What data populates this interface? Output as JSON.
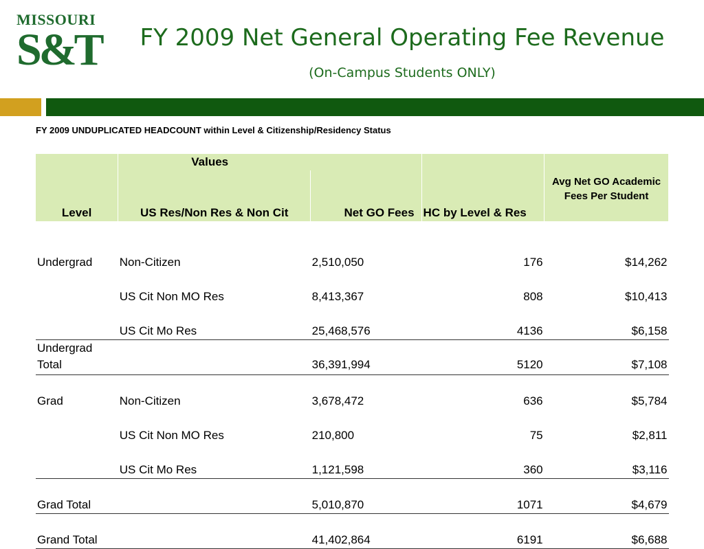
{
  "logo": {
    "top_text": "MISSOURI",
    "main_text": "S&T"
  },
  "title": {
    "main": "FY 2009 Net General Operating Fee Revenue",
    "sub": "(On-Campus Students ONLY)"
  },
  "colors": {
    "brand_green": "#10590f",
    "title_green": "#1d6b1d",
    "gold": "#d2a01f",
    "header_fill": "#d9ebb5"
  },
  "caption": "FY 2009 UNDUPLICATED HEADCOUNT within Level & Citizenship/Residency Status",
  "table": {
    "values_label": "Values",
    "headers": [
      "Level",
      "US Res/Non Res & Non Cit",
      "Net GO Fees",
      "HC by Level & Res",
      "Avg Net GO Academic Fees Per Student"
    ],
    "rows": [
      {
        "level": "Undergrad",
        "res": "Non-Citizen",
        "fees": "2,510,050",
        "hc": "176",
        "avg": "$14,262"
      },
      {
        "level": "",
        "res": "US Cit Non MO Res",
        "fees": "8,413,367",
        "hc": "808",
        "avg": "$10,413"
      },
      {
        "level": "",
        "res": "US Cit Mo Res",
        "fees": "25,468,576",
        "hc": "4136",
        "avg": "$6,158"
      },
      {
        "level": "Undergrad Total",
        "res": "",
        "fees": "36,391,994",
        "hc": "5120",
        "avg": "$7,108"
      },
      {
        "level": "Grad",
        "res": "Non-Citizen",
        "fees": "3,678,472",
        "hc": "636",
        "avg": "$5,784"
      },
      {
        "level": "",
        "res": "US Cit Non MO Res",
        "fees": "210,800",
        "hc": "75",
        "avg": "$2,811"
      },
      {
        "level": "",
        "res": "US Cit Mo Res",
        "fees": "1,121,598",
        "hc": "360",
        "avg": "$3,116"
      },
      {
        "level": "Grad Total",
        "res": "",
        "fees": "5,010,870",
        "hc": "1071",
        "avg": "$4,679"
      },
      {
        "level": "Grand Total",
        "res": "",
        "fees": "41,402,864",
        "hc": "6191",
        "avg": "$6,688"
      }
    ]
  }
}
